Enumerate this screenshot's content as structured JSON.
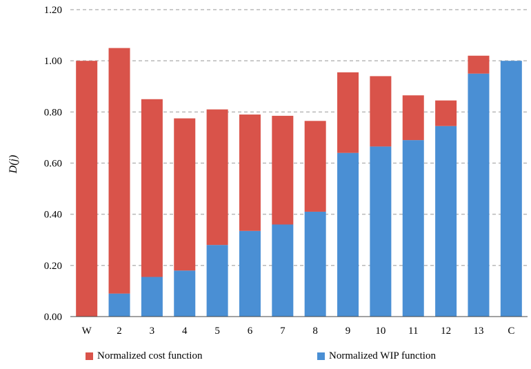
{
  "chart_data": {
    "type": "bar",
    "stacked": true,
    "categories": [
      "W",
      "2",
      "3",
      "4",
      "5",
      "6",
      "7",
      "8",
      "9",
      "10",
      "11",
      "12",
      "13",
      "C"
    ],
    "series": [
      {
        "name": "Normalized WIP function",
        "color": "#4a8fd4",
        "values": [
          0.0,
          0.09,
          0.155,
          0.18,
          0.28,
          0.335,
          0.36,
          0.41,
          0.64,
          0.665,
          0.69,
          0.745,
          0.95,
          1.0
        ]
      },
      {
        "name": "Normalized cost function",
        "color": "#d9534a",
        "values": [
          1.0,
          0.96,
          0.695,
          0.595,
          0.53,
          0.455,
          0.425,
          0.355,
          0.315,
          0.275,
          0.175,
          0.1,
          0.07,
          0.0
        ]
      }
    ],
    "ylabel": "D(j)",
    "yticks": [
      "0.00",
      "0.20",
      "0.40",
      "0.60",
      "0.80",
      "1.00",
      "1.20"
    ],
    "ylim": [
      0,
      1.2
    ],
    "grid": true,
    "legend_position": "bottom"
  }
}
